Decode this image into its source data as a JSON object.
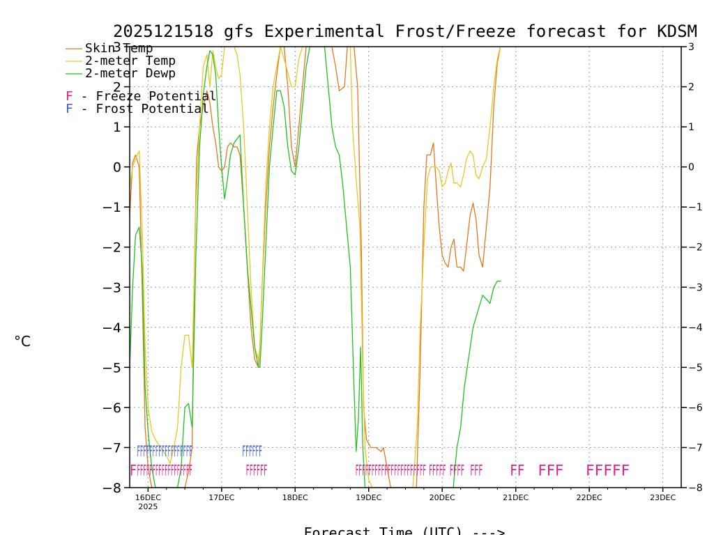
{
  "colors": {
    "skin": "#e07820",
    "temp": "#e8c820",
    "dewp": "#20c020",
    "freeze": "#e0208c",
    "frost": "#3a5cdc",
    "grid": "#9a9a9a"
  },
  "chart_data": {
    "type": "line",
    "title": "2025121518 gfs Experimental Frost/Freeze forecast for KDSM",
    "xlabel": "Forecast Time (UTC) --->",
    "ylabel": "°C",
    "ylim": [
      -8,
      3
    ],
    "xlim": [
      15.75,
      23.25
    ],
    "yticks": [
      {
        "v": -8,
        "label": "−8"
      },
      {
        "v": -7,
        "label": "−7"
      },
      {
        "v": -6,
        "label": "−6"
      },
      {
        "v": -5,
        "label": "−5"
      },
      {
        "v": -4,
        "label": "−4"
      },
      {
        "v": -3,
        "label": "−3"
      },
      {
        "v": -2,
        "label": "−2"
      },
      {
        "v": -1,
        "label": "−1"
      },
      {
        "v": 0,
        "label": "0"
      },
      {
        "v": 1,
        "label": "1"
      },
      {
        "v": 2,
        "label": "2"
      },
      {
        "v": 3,
        "label": "3"
      }
    ],
    "xticks": [
      {
        "v": 16,
        "label": "16DEC",
        "sub": "2025"
      },
      {
        "v": 17,
        "label": "17DEC",
        "sub": ""
      },
      {
        "v": 18,
        "label": "18DEC",
        "sub": ""
      },
      {
        "v": 19,
        "label": "19DEC",
        "sub": ""
      },
      {
        "v": 20,
        "label": "20DEC",
        "sub": ""
      },
      {
        "v": 21,
        "label": "21DEC",
        "sub": ""
      },
      {
        "v": 22,
        "label": "22DEC",
        "sub": ""
      },
      {
        "v": 23,
        "label": "23DEC",
        "sub": ""
      }
    ],
    "legend": {
      "series": [
        "Skin Temp",
        "2-meter Temp",
        "2-meter Dewp"
      ],
      "freeze": "F - Freeze Potential",
      "frost": "F - Frost Potential",
      "placement": "top-left"
    },
    "series": [
      {
        "name": "Skin Temp",
        "color_key": "skin",
        "points": [
          [
            15.75,
            -1.2
          ],
          [
            15.79,
            0.1
          ],
          [
            15.83,
            0.3
          ],
          [
            15.88,
            0.0
          ],
          [
            15.92,
            -3.0
          ],
          [
            15.96,
            -6.5
          ],
          [
            16.0,
            -7.5
          ],
          [
            16.05,
            -8.0
          ],
          [
            16.5,
            -8.0
          ],
          [
            16.55,
            -7.6
          ],
          [
            16.6,
            -7.0
          ],
          [
            16.63,
            -2.5
          ],
          [
            16.66,
            0.2
          ],
          [
            16.7,
            1.0
          ],
          [
            16.75,
            1.5
          ],
          [
            16.8,
            1.9
          ],
          [
            16.84,
            1.6
          ],
          [
            16.88,
            1.0
          ],
          [
            16.92,
            0.6
          ],
          [
            16.96,
            0.0
          ],
          [
            17.0,
            -0.1
          ],
          [
            17.04,
            0.0
          ],
          [
            17.08,
            0.5
          ],
          [
            17.12,
            0.6
          ],
          [
            17.17,
            0.5
          ],
          [
            17.21,
            0.5
          ],
          [
            17.25,
            0.3
          ],
          [
            17.3,
            -1.0
          ],
          [
            17.35,
            -2.5
          ],
          [
            17.4,
            -4.0
          ],
          [
            17.45,
            -4.8
          ],
          [
            17.5,
            -5.0
          ],
          [
            17.52,
            -4.5
          ],
          [
            17.55,
            -3.0
          ],
          [
            17.6,
            -1.0
          ],
          [
            17.65,
            0.5
          ],
          [
            17.7,
            1.5
          ],
          [
            17.75,
            2.3
          ],
          [
            17.8,
            3.0
          ],
          [
            17.85,
            3.0
          ],
          [
            17.9,
            2.0
          ],
          [
            17.95,
            0.5
          ],
          [
            18.0,
            0.0
          ],
          [
            18.05,
            1.0
          ],
          [
            18.1,
            2.0
          ],
          [
            18.15,
            3.0
          ],
          [
            18.2,
            3.0
          ],
          [
            18.5,
            3.0
          ],
          [
            18.55,
            2.5
          ],
          [
            18.6,
            1.9
          ],
          [
            18.67,
            2.0
          ],
          [
            18.71,
            3.0
          ],
          [
            18.8,
            3.0
          ],
          [
            18.85,
            2.0
          ],
          [
            18.9,
            -2.0
          ],
          [
            18.93,
            -6.0
          ],
          [
            18.97,
            -6.8
          ],
          [
            19.03,
            -7.0
          ],
          [
            19.1,
            -7.0
          ],
          [
            19.17,
            -7.1
          ],
          [
            19.2,
            -7.0
          ],
          [
            19.25,
            -7.5
          ],
          [
            19.3,
            -8.0
          ],
          [
            19.65,
            -8.0
          ],
          [
            19.7,
            -5.0
          ],
          [
            19.75,
            -1.0
          ],
          [
            19.79,
            0.3
          ],
          [
            19.84,
            0.3
          ],
          [
            19.88,
            0.6
          ],
          [
            19.92,
            -0.5
          ],
          [
            19.96,
            -1.5
          ],
          [
            20.0,
            -2.2
          ],
          [
            20.04,
            -2.4
          ],
          [
            20.08,
            -2.5
          ],
          [
            20.12,
            -2.0
          ],
          [
            20.16,
            -1.8
          ],
          [
            20.2,
            -2.5
          ],
          [
            20.25,
            -2.5
          ],
          [
            20.29,
            -2.6
          ],
          [
            20.33,
            -2.0
          ],
          [
            20.38,
            -1.2
          ],
          [
            20.42,
            -0.9
          ],
          [
            20.46,
            -1.3
          ],
          [
            20.5,
            -2.2
          ],
          [
            20.55,
            -2.5
          ],
          [
            20.6,
            -1.5
          ],
          [
            20.65,
            -0.5
          ],
          [
            20.7,
            1.5
          ],
          [
            20.75,
            2.6
          ],
          [
            20.79,
            3.0
          ]
        ]
      },
      {
        "name": "2-meter Temp",
        "color_key": "temp",
        "points": [
          [
            15.75,
            -0.5
          ],
          [
            15.79,
            0.0
          ],
          [
            15.83,
            0.2
          ],
          [
            15.88,
            0.4
          ],
          [
            15.92,
            -1.5
          ],
          [
            15.96,
            -4.5
          ],
          [
            16.0,
            -6.0
          ],
          [
            16.05,
            -6.6
          ],
          [
            16.1,
            -6.8
          ],
          [
            16.17,
            -7.0
          ],
          [
            16.25,
            -7.2
          ],
          [
            16.3,
            -7.4
          ],
          [
            16.35,
            -7.0
          ],
          [
            16.4,
            -6.5
          ],
          [
            16.45,
            -5.0
          ],
          [
            16.5,
            -4.2
          ],
          [
            16.55,
            -4.2
          ],
          [
            16.6,
            -5.0
          ],
          [
            16.65,
            -1.0
          ],
          [
            16.7,
            1.0
          ],
          [
            16.75,
            2.5
          ],
          [
            16.8,
            2.8
          ],
          [
            16.84,
            2.0
          ],
          [
            16.88,
            2.9
          ],
          [
            16.92,
            2.5
          ],
          [
            16.96,
            2.2
          ],
          [
            17.0,
            2.3
          ],
          [
            17.04,
            3.0
          ],
          [
            17.08,
            3.0
          ],
          [
            17.17,
            3.0
          ],
          [
            17.21,
            2.8
          ],
          [
            17.25,
            2.3
          ],
          [
            17.3,
            1.0
          ],
          [
            17.35,
            -1.0
          ],
          [
            17.4,
            -3.0
          ],
          [
            17.45,
            -4.5
          ],
          [
            17.5,
            -4.8
          ],
          [
            17.52,
            -4.5
          ],
          [
            17.55,
            -3.0
          ],
          [
            17.6,
            -0.5
          ],
          [
            17.65,
            1.0
          ],
          [
            17.7,
            2.0
          ],
          [
            17.75,
            2.5
          ],
          [
            17.8,
            3.0
          ],
          [
            17.88,
            2.5
          ],
          [
            17.95,
            2.0
          ],
          [
            18.0,
            2.0
          ],
          [
            18.05,
            2.7
          ],
          [
            18.1,
            3.0
          ],
          [
            18.15,
            3.0
          ],
          [
            18.75,
            3.0
          ],
          [
            18.78,
            1.0
          ],
          [
            18.83,
            -0.3
          ],
          [
            18.88,
            -1.5
          ],
          [
            18.92,
            -5.0
          ],
          [
            18.95,
            -7.0
          ],
          [
            19.0,
            -7.8
          ],
          [
            19.05,
            -8.0
          ],
          [
            19.6,
            -8.0
          ],
          [
            19.66,
            -6.5
          ],
          [
            19.7,
            -4.0
          ],
          [
            19.75,
            -2.0
          ],
          [
            19.8,
            -0.3
          ],
          [
            19.84,
            0.0
          ],
          [
            19.88,
            0.0
          ],
          [
            19.92,
            0.0
          ],
          [
            19.96,
            -0.1
          ],
          [
            20.0,
            -0.5
          ],
          [
            20.04,
            -0.4
          ],
          [
            20.08,
            -0.1
          ],
          [
            20.12,
            0.1
          ],
          [
            20.16,
            -0.4
          ],
          [
            20.2,
            -0.4
          ],
          [
            20.25,
            -0.5
          ],
          [
            20.29,
            -0.2
          ],
          [
            20.33,
            0.2
          ],
          [
            20.38,
            0.4
          ],
          [
            20.42,
            0.3
          ],
          [
            20.46,
            -0.2
          ],
          [
            20.5,
            -0.3
          ],
          [
            20.55,
            0.0
          ],
          [
            20.6,
            0.2
          ],
          [
            20.65,
            1.0
          ],
          [
            20.7,
            2.0
          ],
          [
            20.75,
            2.7
          ],
          [
            20.79,
            3.0
          ]
        ]
      },
      {
        "name": "2-meter Dewp",
        "color_key": "dewp",
        "points": [
          [
            15.75,
            -5.0
          ],
          [
            15.79,
            -3.0
          ],
          [
            15.83,
            -1.7
          ],
          [
            15.88,
            -1.5
          ],
          [
            15.92,
            -2.5
          ],
          [
            15.96,
            -5.5
          ],
          [
            16.0,
            -6.6
          ],
          [
            16.05,
            -7.5
          ],
          [
            16.1,
            -8.0
          ],
          [
            16.4,
            -8.0
          ],
          [
            16.45,
            -7.5
          ],
          [
            16.5,
            -6.0
          ],
          [
            16.55,
            -5.9
          ],
          [
            16.6,
            -6.5
          ],
          [
            16.65,
            -2.2
          ],
          [
            16.7,
            0.5
          ],
          [
            16.75,
            1.8
          ],
          [
            16.8,
            2.5
          ],
          [
            16.84,
            2.9
          ],
          [
            16.88,
            2.8
          ],
          [
            16.92,
            2.3
          ],
          [
            16.96,
            1.0
          ],
          [
            17.0,
            0.0
          ],
          [
            17.04,
            -0.8
          ],
          [
            17.08,
            -0.3
          ],
          [
            17.12,
            0.3
          ],
          [
            17.17,
            0.6
          ],
          [
            17.21,
            0.7
          ],
          [
            17.25,
            0.8
          ],
          [
            17.3,
            -1.0
          ],
          [
            17.35,
            -2.5
          ],
          [
            17.4,
            -3.5
          ],
          [
            17.45,
            -4.5
          ],
          [
            17.5,
            -5.0
          ],
          [
            17.52,
            -5.0
          ],
          [
            17.55,
            -4.0
          ],
          [
            17.6,
            -2.0
          ],
          [
            17.65,
            0.0
          ],
          [
            17.7,
            1.0
          ],
          [
            17.75,
            1.9
          ],
          [
            17.8,
            1.9
          ],
          [
            17.85,
            1.5
          ],
          [
            17.9,
            0.5
          ],
          [
            17.95,
            -0.1
          ],
          [
            18.0,
            -0.2
          ],
          [
            18.05,
            0.5
          ],
          [
            18.1,
            1.5
          ],
          [
            18.15,
            2.5
          ],
          [
            18.2,
            3.0
          ],
          [
            18.4,
            3.0
          ],
          [
            18.45,
            2.0
          ],
          [
            18.5,
            1.0
          ],
          [
            18.55,
            0.5
          ],
          [
            18.6,
            0.3
          ],
          [
            18.65,
            -0.5
          ],
          [
            18.7,
            -1.5
          ],
          [
            18.75,
            -2.5
          ],
          [
            18.8,
            -5.5
          ],
          [
            18.83,
            -7.1
          ],
          [
            18.86,
            -6.3
          ],
          [
            18.89,
            -4.5
          ],
          [
            18.92,
            -7.0
          ],
          [
            18.95,
            -8.0
          ],
          [
            20.15,
            -8.0
          ],
          [
            20.2,
            -7.0
          ],
          [
            20.25,
            -6.5
          ],
          [
            20.3,
            -5.5
          ],
          [
            20.38,
            -4.5
          ],
          [
            20.42,
            -4.0
          ],
          [
            20.5,
            -3.5
          ],
          [
            20.55,
            -3.2
          ],
          [
            20.6,
            -3.3
          ],
          [
            20.65,
            -3.4
          ],
          [
            20.7,
            -3.0
          ],
          [
            20.75,
            -2.85
          ],
          [
            20.8,
            -2.85
          ]
        ]
      }
    ],
    "frost_flags": [
      {
        "start": 15.85,
        "end": 16.6,
        "text": "FFFFFFFFFFFFFFFFFF"
      },
      {
        "start": 17.28,
        "end": 17.55,
        "text": "FFFFFF"
      }
    ],
    "freeze_flags": [
      {
        "start": 15.75,
        "end": 15.82,
        "text": "F"
      },
      {
        "start": 15.85,
        "end": 16.6,
        "text": "FFFFFFFFFFFFFFFFFF"
      },
      {
        "start": 17.33,
        "end": 17.62,
        "text": "FFFFFF"
      },
      {
        "start": 18.82,
        "end": 19.78,
        "text": "FFFFFFFFFFFFFFFFFFFFFF"
      },
      {
        "start": 19.82,
        "end": 20.05,
        "text": "FFFFF"
      },
      {
        "start": 20.1,
        "end": 20.3,
        "text": "FFFF"
      },
      {
        "start": 20.38,
        "end": 20.55,
        "text": "FFF"
      },
      {
        "start": 20.92,
        "end": 21.12,
        "text": "FF"
      },
      {
        "start": 21.3,
        "end": 21.65,
        "text": "FFF"
      },
      {
        "start": 21.95,
        "end": 22.55,
        "text": "FFFFF"
      }
    ]
  }
}
